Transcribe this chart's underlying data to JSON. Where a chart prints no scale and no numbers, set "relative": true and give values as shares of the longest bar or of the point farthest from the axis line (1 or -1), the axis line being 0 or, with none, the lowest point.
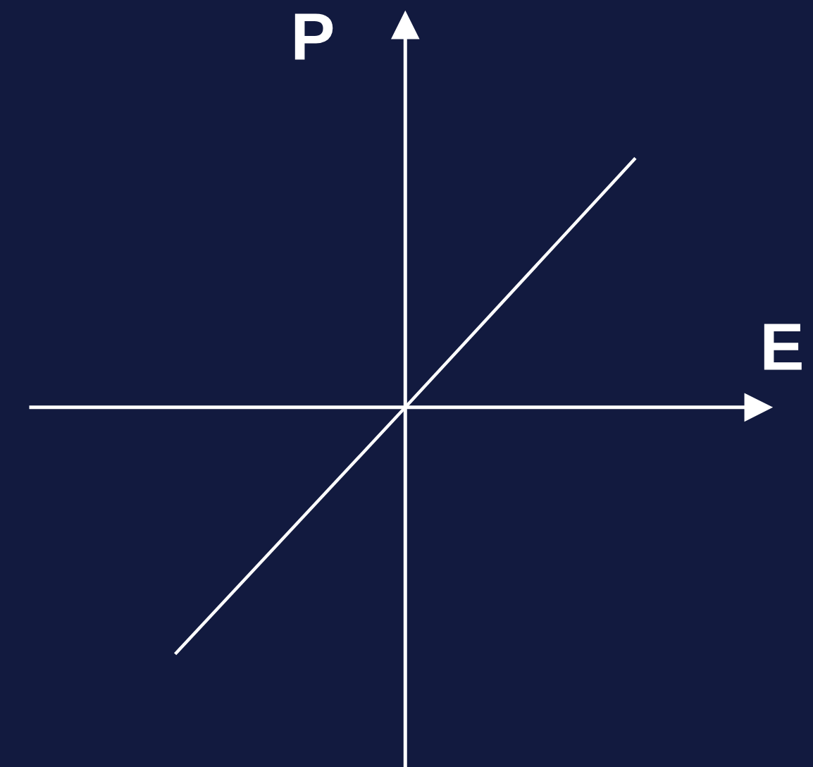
{
  "chart_data": {
    "type": "line",
    "xlabel": "E",
    "ylabel": "P",
    "relative": true,
    "categories": [
      null,
      null,
      null
    ],
    "series": [
      {
        "color": "#ffffff",
        "values": [
          -0.99,
          0,
          1
        ]
      }
    ],
    "line_style": "solid",
    "marker": "none",
    "legend": false
  }
}
